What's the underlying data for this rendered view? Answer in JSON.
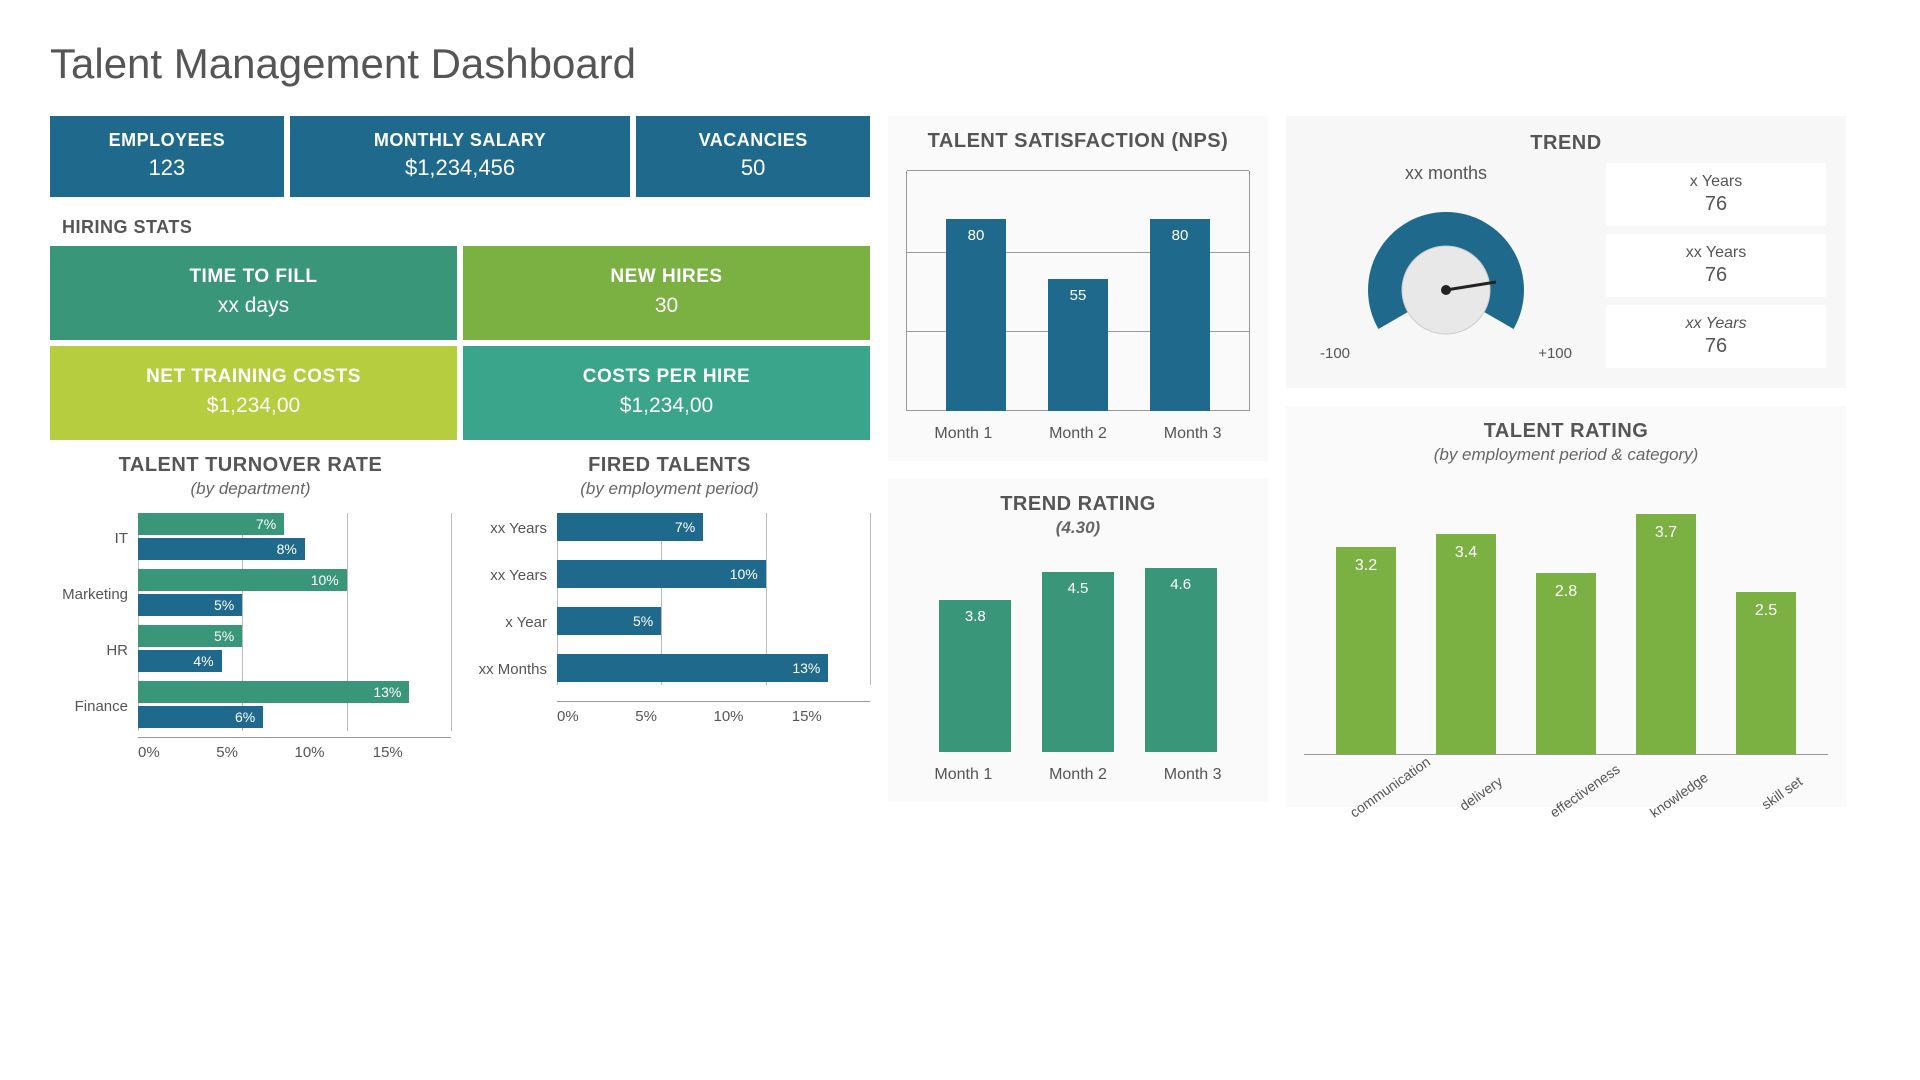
{
  "title": "Talent Management Dashboard",
  "colors": {
    "blue": "#1f6a8c",
    "green_dark": "#3a9679",
    "green_mid": "#7bb043",
    "green_lime": "#b5cd3e",
    "green_teal": "#3aa58a",
    "text": "#555555",
    "grid": "#999999",
    "panel_bg": "#fafafa"
  },
  "metrics": [
    {
      "label": "EMPLOYEES",
      "value": "123",
      "bg": "#1f6a8c"
    },
    {
      "label": "MONTHLY SALARY",
      "value": "$1,234,456",
      "bg": "#1f6a8c"
    },
    {
      "label": "VACANCIES",
      "value": "50",
      "bg": "#1f6a8c"
    }
  ],
  "hiring_stats": {
    "title": "HIRING STATS",
    "cards": [
      {
        "label": "TIME TO FILL",
        "value": "xx days",
        "bg": "#3a9679"
      },
      {
        "label": "NEW HIRES",
        "value": "30",
        "bg": "#7bb043"
      },
      {
        "label": "NET TRAINING COSTS",
        "value": "$1,234,00",
        "bg": "#b5cd3e"
      },
      {
        "label": "COSTS PER HIRE",
        "value": "$1,234,00",
        "bg": "#3aa58a"
      }
    ]
  },
  "turnover": {
    "title": "TALENT TURNOVER RATE",
    "subtitle": "(by department)",
    "type": "grouped-horizontal-bar",
    "xmax": 15,
    "xticks": [
      "0%",
      "5%",
      "10%",
      "15%"
    ],
    "series_colors": [
      "#3a9679",
      "#1f6a8c"
    ],
    "categories": [
      "IT",
      "Marketing",
      "HR",
      "Finance"
    ],
    "data": [
      {
        "cat": "IT",
        "vals": [
          7,
          8
        ]
      },
      {
        "cat": "Marketing",
        "vals": [
          10,
          5
        ]
      },
      {
        "cat": "HR",
        "vals": [
          5,
          4
        ]
      },
      {
        "cat": "Finance",
        "vals": [
          13,
          6
        ]
      }
    ]
  },
  "fired": {
    "title": "FIRED TALENTS",
    "subtitle": "(by employment period)",
    "type": "horizontal-bar",
    "xmax": 15,
    "xticks": [
      "0%",
      "5%",
      "10%",
      "15%"
    ],
    "bar_color": "#1f6a8c",
    "data": [
      {
        "cat": "xx Years",
        "val": 7
      },
      {
        "cat": "xx Years",
        "val": 10
      },
      {
        "cat": "x Year",
        "val": 5
      },
      {
        "cat": "xx Months",
        "val": 13
      }
    ]
  },
  "nps": {
    "title": "TALENT SATISFACTION (NPS)",
    "type": "bar",
    "ymax": 100,
    "gridlines": [
      0,
      33,
      66,
      100
    ],
    "bar_color": "#1f6a8c",
    "data": [
      {
        "label": "Month 1",
        "val": 80
      },
      {
        "label": "Month 2",
        "val": 55
      },
      {
        "label": "Month 3",
        "val": 80
      }
    ]
  },
  "trend_rating": {
    "title": "TREND RATING",
    "subtitle": "(4.30)",
    "type": "bar",
    "ymax": 5,
    "bar_color": "#3a9679",
    "data": [
      {
        "label": "Month 1",
        "val": 3.8
      },
      {
        "label": "Month 2",
        "val": 4.5
      },
      {
        "label": "Month 3",
        "val": 4.6
      }
    ]
  },
  "trend": {
    "title": "TREND",
    "gauge": {
      "subtitle": "xx months",
      "min_label": "-100",
      "max_label": "+100",
      "arc_color": "#1f6a8c",
      "center_color": "#dcdcdc",
      "needle_angle_deg": 10
    },
    "list": [
      {
        "label": "x Years",
        "value": "76",
        "italic": false
      },
      {
        "label": "xx Years",
        "value": "76",
        "italic": false
      },
      {
        "label": "xx Years",
        "value": "76",
        "italic": true
      }
    ]
  },
  "rating": {
    "title": "TALENT RATING",
    "subtitle": "(by employment period & category)",
    "type": "bar",
    "ymax": 4,
    "bar_color": "#7bb043",
    "data": [
      {
        "label": "communication",
        "val": 3.2
      },
      {
        "label": "delivery",
        "val": 3.4
      },
      {
        "label": "effectiveness",
        "val": 2.8
      },
      {
        "label": "knowledge",
        "val": 3.7
      },
      {
        "label": "skill set",
        "val": 2.5
      }
    ]
  }
}
